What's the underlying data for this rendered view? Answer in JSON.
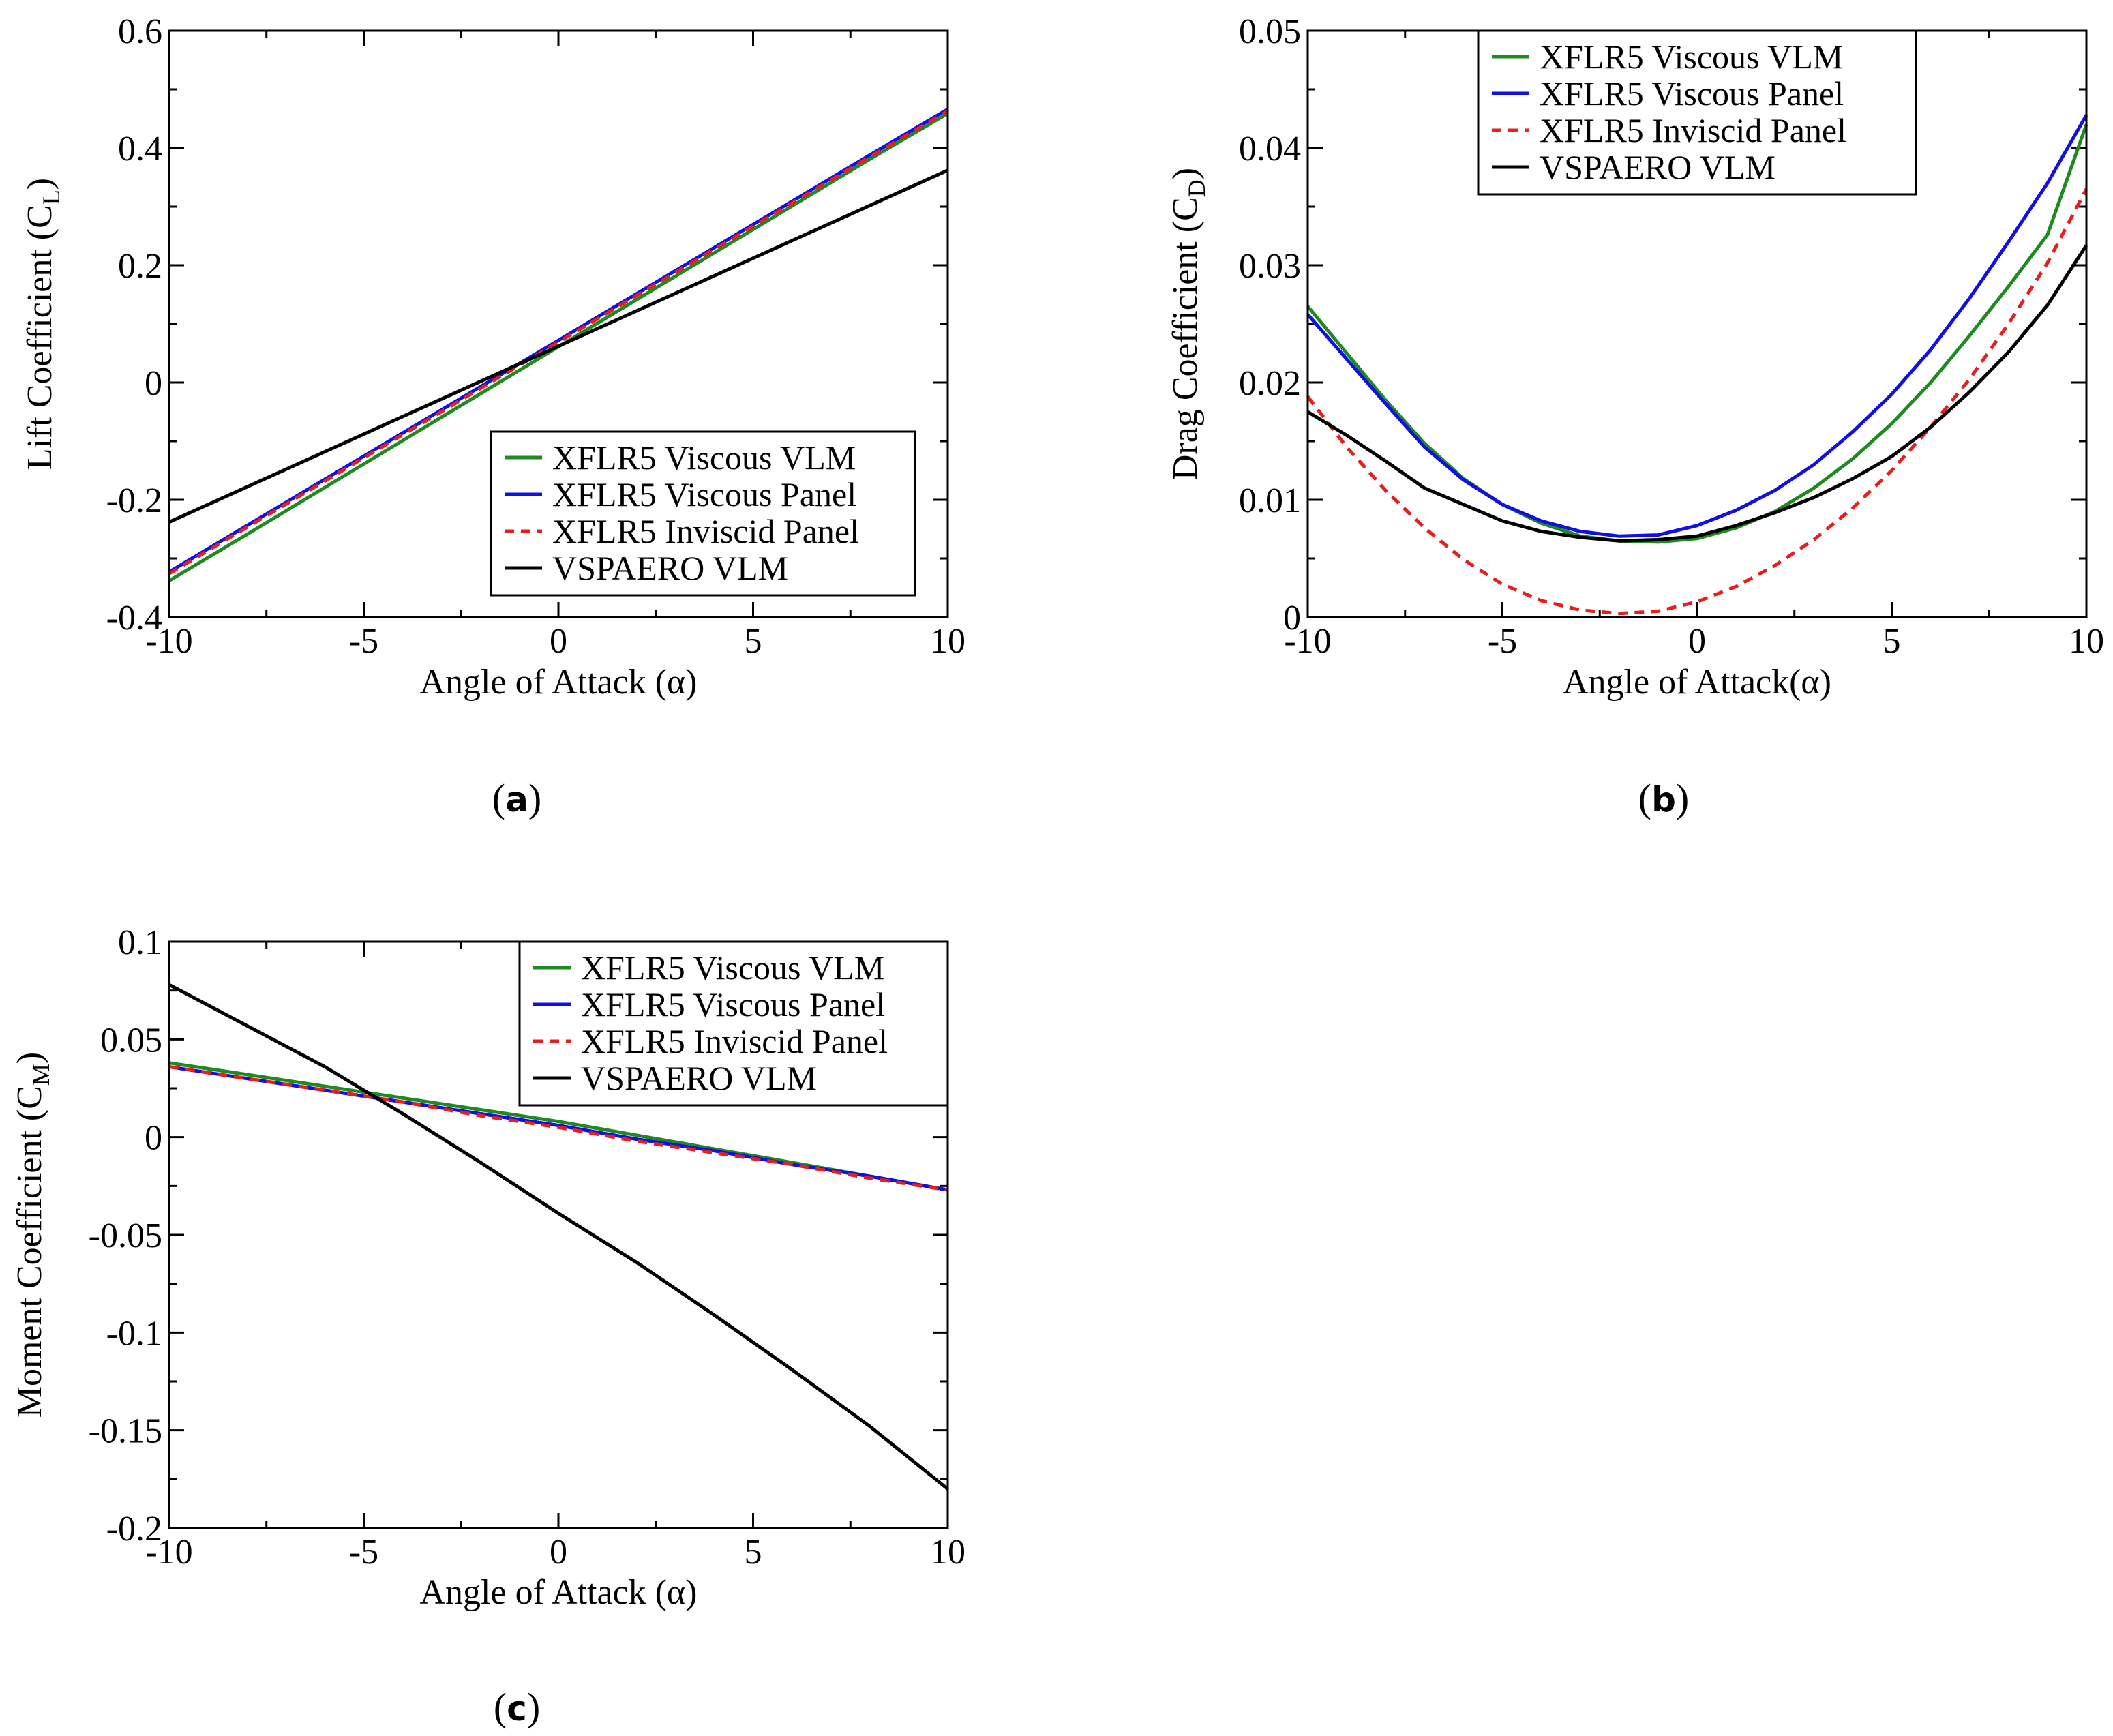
{
  "colors": {
    "xflr5_viscous_vlm": "#1f8a1f",
    "xflr5_viscous_panel": "#1010e6",
    "xflr5_inviscid_panel": "#e61e1e",
    "vspaero_vlm": "#000000"
  },
  "chart_data": [
    {
      "id": "a",
      "type": "line",
      "caption": "a",
      "xlabel": "Angle of Attack (α)",
      "ylabel_main": "Lift Coefficient (C",
      "ylabel_sub": "L",
      "ylabel_close": ")",
      "xlim": [
        -10,
        10
      ],
      "ylim": [
        -0.4,
        0.6
      ],
      "xticks": [
        -10,
        -5,
        0,
        5,
        10
      ],
      "xtick_labels": [
        "-10",
        "-5",
        "0",
        "5",
        "10"
      ],
      "yticks": [
        -0.4,
        -0.2,
        0,
        0.2,
        0.4,
        0.6
      ],
      "ytick_labels": [
        "-0.4",
        "-0.2",
        "0",
        "0.2",
        "0.4",
        "0.6"
      ],
      "legend_position": "bottom-right",
      "x": [
        -10,
        -8,
        -6,
        -4,
        -2,
        0,
        2,
        4,
        6,
        8,
        10
      ],
      "series": [
        {
          "name": "XFLR5 Viscous VLM",
          "color_key": "xflr5_viscous_vlm",
          "dash": false,
          "values": [
            -0.338,
            -0.259,
            -0.179,
            -0.099,
            -0.019,
            0.061,
            0.141,
            0.221,
            0.301,
            0.381,
            0.459
          ]
        },
        {
          "name": "XFLR5 Viscous Panel",
          "color_key": "xflr5_viscous_panel",
          "dash": false,
          "values": [
            -0.323,
            -0.244,
            -0.165,
            -0.086,
            -0.007,
            0.072,
            0.151,
            0.23,
            0.309,
            0.388,
            0.466
          ]
        },
        {
          "name": "XFLR5 Inviscid Panel",
          "color_key": "xflr5_inviscid_panel",
          "dash": true,
          "values": [
            -0.326,
            -0.247,
            -0.168,
            -0.089,
            -0.01,
            0.069,
            0.148,
            0.227,
            0.306,
            0.385,
            0.463
          ]
        },
        {
          "name": "VSPAERO VLM",
          "color_key": "vspaero_vlm",
          "dash": false,
          "values": [
            -0.238,
            -0.178,
            -0.118,
            -0.058,
            0.002,
            0.062,
            0.122,
            0.182,
            0.242,
            0.302,
            0.362
          ]
        }
      ]
    },
    {
      "id": "b",
      "type": "line",
      "caption": "b",
      "xlabel": "Angle of Attack(α)",
      "ylabel_main": "Drag Coefficient (C",
      "ylabel_sub": "D",
      "ylabel_close": ")",
      "xlim": [
        -10,
        10
      ],
      "ylim": [
        0,
        0.05
      ],
      "xticks": [
        -10,
        -5,
        0,
        5,
        10
      ],
      "xtick_labels": [
        "-10",
        "-5",
        "0",
        "5",
        "10"
      ],
      "yticks": [
        0,
        0.01,
        0.02,
        0.03,
        0.04,
        0.05
      ],
      "ytick_labels": [
        "0",
        "0.01",
        "0.02",
        "0.03",
        "0.04",
        "0.05"
      ],
      "legend_position": "top-center",
      "x": [
        -10,
        -9,
        -8,
        -7,
        -6,
        -5,
        -4,
        -3,
        -2,
        -1,
        0,
        1,
        2,
        3,
        4,
        5,
        6,
        7,
        8,
        9,
        10
      ],
      "series": [
        {
          "name": "XFLR5 Viscous VLM",
          "color_key": "xflr5_viscous_vlm",
          "dash": false,
          "values": [
            0.0265,
            0.0225,
            0.0185,
            0.0148,
            0.0118,
            0.0096,
            0.008,
            0.0069,
            0.0065,
            0.0064,
            0.0067,
            0.0076,
            0.009,
            0.011,
            0.0135,
            0.0165,
            0.02,
            0.024,
            0.0282,
            0.0326,
            0.042
          ]
        },
        {
          "name": "XFLR5 Viscous Panel",
          "color_key": "xflr5_viscous_panel",
          "dash": false,
          "values": [
            0.0258,
            0.022,
            0.0182,
            0.0145,
            0.0117,
            0.0096,
            0.0082,
            0.0073,
            0.0069,
            0.007,
            0.0078,
            0.0091,
            0.0108,
            0.013,
            0.0158,
            0.019,
            0.0228,
            0.0272,
            0.032,
            0.037,
            0.0428
          ]
        },
        {
          "name": "XFLR5 Inviscid Panel",
          "color_key": "xflr5_inviscid_panel",
          "dash": true,
          "values": [
            0.0188,
            0.0145,
            0.0108,
            0.0076,
            0.0049,
            0.0028,
            0.0014,
            0.0006,
            0.0003,
            0.0005,
            0.0013,
            0.0026,
            0.0044,
            0.0066,
            0.0093,
            0.0125,
            0.0162,
            0.0203,
            0.025,
            0.0302,
            0.0365
          ]
        },
        {
          "name": "VSPAERO VLM",
          "color_key": "vspaero_vlm",
          "dash": false,
          "values": [
            0.0175,
            0.0155,
            0.0133,
            0.011,
            0.0096,
            0.0082,
            0.0073,
            0.0068,
            0.0065,
            0.0066,
            0.0069,
            0.0078,
            0.0089,
            0.0102,
            0.0118,
            0.0137,
            0.0162,
            0.0192,
            0.0226,
            0.0266,
            0.0317
          ]
        }
      ]
    },
    {
      "id": "c",
      "type": "line",
      "caption": "c",
      "xlabel": "Angle of Attack (α)",
      "ylabel_main": "Moment Coefficient (C",
      "ylabel_sub": "M",
      "ylabel_close": ")",
      "xlim": [
        -10,
        10
      ],
      "ylim": [
        -0.2,
        0.1
      ],
      "xticks": [
        -10,
        -5,
        0,
        5,
        10
      ],
      "xtick_labels": [
        "-10",
        "-5",
        "0",
        "5",
        "10"
      ],
      "yticks": [
        -0.2,
        -0.15,
        -0.1,
        -0.05,
        0,
        0.05,
        0.1
      ],
      "ytick_labels": [
        "-0.2",
        "-0.15",
        "-0.1",
        "-0.05",
        "0",
        "0.05",
        "0.1"
      ],
      "legend_position": "top-right",
      "x": [
        -10,
        -8,
        -6,
        -4,
        -2,
        0,
        2,
        4,
        6,
        8,
        10
      ],
      "series": [
        {
          "name": "XFLR5 Viscous VLM",
          "color_key": "xflr5_viscous_vlm",
          "dash": false,
          "values": [
            0.038,
            0.032,
            0.026,
            0.02,
            0.014,
            0.008,
            0.001,
            -0.006,
            -0.013,
            -0.02,
            -0.027
          ]
        },
        {
          "name": "XFLR5 Viscous Panel",
          "color_key": "xflr5_viscous_panel",
          "dash": false,
          "values": [
            0.036,
            0.03,
            0.024,
            0.018,
            0.012,
            0.006,
            -0.001,
            -0.007,
            -0.014,
            -0.02,
            -0.027
          ]
        },
        {
          "name": "XFLR5 Inviscid Panel",
          "color_key": "xflr5_inviscid_panel",
          "dash": true,
          "values": [
            0.036,
            0.03,
            0.024,
            0.018,
            0.011,
            0.005,
            -0.002,
            -0.008,
            -0.014,
            -0.021,
            -0.027
          ]
        },
        {
          "name": "VSPAERO VLM",
          "color_key": "vspaero_vlm",
          "dash": false,
          "values": [
            0.078,
            0.057,
            0.036,
            0.012,
            -0.013,
            -0.039,
            -0.064,
            -0.091,
            -0.119,
            -0.148,
            -0.18
          ]
        }
      ]
    }
  ]
}
